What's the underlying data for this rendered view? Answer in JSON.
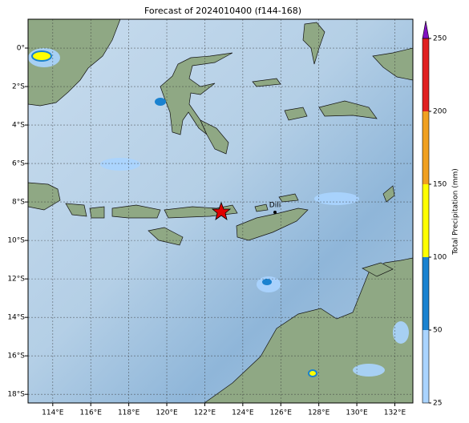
{
  "title": "Forecast of 2024010400 (f144-168)",
  "map": {
    "xlim": [
      112.7,
      132.95
    ],
    "ylim": [
      -18.45,
      1.5
    ],
    "lon_ticks": [
      {
        "value": 114,
        "label": "114°E"
      },
      {
        "value": 116,
        "label": "116°E"
      },
      {
        "value": 118,
        "label": "118°E"
      },
      {
        "value": 120,
        "label": "120°E"
      },
      {
        "value": 122,
        "label": "122°E"
      },
      {
        "value": 124,
        "label": "124°E"
      },
      {
        "value": 126,
        "label": "126°E"
      },
      {
        "value": 128,
        "label": "128°E"
      },
      {
        "value": 130,
        "label": "130°E"
      },
      {
        "value": 132,
        "label": "132°E"
      }
    ],
    "lat_ticks": [
      {
        "value": 0,
        "label": "0°"
      },
      {
        "value": -2,
        "label": "2°S"
      },
      {
        "value": -4,
        "label": "4°S"
      },
      {
        "value": -6,
        "label": "6°S"
      },
      {
        "value": -8,
        "label": "8°S"
      },
      {
        "value": -10,
        "label": "10°S"
      },
      {
        "value": -12,
        "label": "12°S"
      },
      {
        "value": -14,
        "label": "14°S"
      },
      {
        "value": -16,
        "label": "16°S"
      },
      {
        "value": -18,
        "label": "18°S"
      }
    ],
    "city": "Dili"
  },
  "colorbar": {
    "label": "Total Precipitation (mm)",
    "ticks": [
      25,
      50,
      100,
      150,
      200,
      250
    ],
    "colors": [
      "#aad4ff",
      "#1a82d0",
      "#ffff00",
      "#f0a020",
      "#e02020"
    ],
    "extend_color": "#8010c0"
  }
}
